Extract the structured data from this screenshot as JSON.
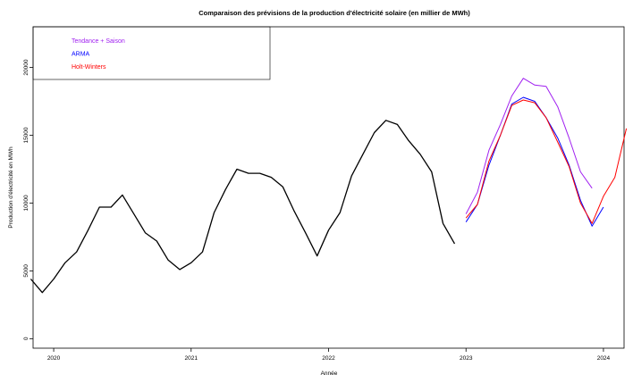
{
  "chart_data": {
    "type": "line",
    "title": "Comparaison des prévisions de la production d'électricité solaire (en millier de MWh)",
    "xlabel": "Année",
    "ylabel": "Production d'électricité en MWh",
    "xlim": [
      2019.85,
      2024.15
    ],
    "ylim": [
      -700,
      23000
    ],
    "x_ticks": [
      2020,
      2021,
      2022,
      2023,
      2024
    ],
    "x_tick_labels": [
      "2020",
      "2021",
      "2022",
      "2023",
      "2024"
    ],
    "y_ticks": [
      0,
      5000,
      10000,
      15000,
      20000
    ],
    "y_tick_labels": [
      "0",
      "5000",
      "10000",
      "15000",
      "20000"
    ],
    "grid": false,
    "legend_position": "top-left",
    "series": [
      {
        "name": "",
        "color": "#000000",
        "x": [
          2019.833,
          2019.917,
          2020.0,
          2020.083,
          2020.167,
          2020.25,
          2020.333,
          2020.417,
          2020.5,
          2020.583,
          2020.667,
          2020.75,
          2020.833,
          2020.917,
          2021.0,
          2021.083,
          2021.167,
          2021.25,
          2021.333,
          2021.417,
          2021.5,
          2021.583,
          2021.667,
          2021.75,
          2021.833,
          2021.917,
          2022.0,
          2022.083,
          2022.167,
          2022.25,
          2022.333,
          2022.417,
          2022.5,
          2022.583,
          2022.667,
          2022.75,
          2022.833,
          2022.917
        ],
        "values": [
          4400,
          3400,
          4400,
          5600,
          6400,
          8000,
          9700,
          9700,
          10600,
          9200,
          7800,
          7200,
          5800,
          5100,
          5600,
          6400,
          9300,
          11000,
          12500,
          12200,
          12200,
          11900,
          11200,
          9400,
          7800,
          6100,
          8000,
          9300,
          12000,
          13600,
          15200,
          16100,
          15800,
          14600,
          13600,
          12300,
          8500,
          7000
        ]
      },
      {
        "name": "Tendance + Saison",
        "color": "#a020f0",
        "x": [
          2023.0,
          2023.083,
          2023.167,
          2023.25,
          2023.333,
          2023.417,
          2023.5,
          2023.583,
          2023.667,
          2023.75,
          2023.833,
          2023.917
        ],
        "values": [
          9200,
          10800,
          13900,
          15800,
          17900,
          19200,
          18700,
          18600,
          17100,
          14800,
          12300,
          11100
        ]
      },
      {
        "name": "ARMA",
        "color": "#0000ff",
        "x": [
          2023.0,
          2023.083,
          2023.167,
          2023.25,
          2023.333,
          2023.417,
          2023.5,
          2023.583,
          2023.667,
          2023.75,
          2023.833,
          2023.917,
          2024.0
        ],
        "values": [
          8600,
          9900,
          12800,
          15000,
          17300,
          17800,
          17500,
          16300,
          14800,
          12800,
          10200,
          8300,
          9700
        ]
      },
      {
        "name": "Holt-Winters",
        "color": "#ff0000",
        "x": [
          2023.0,
          2023.083,
          2023.167,
          2023.25,
          2023.333,
          2023.417,
          2023.5,
          2023.583,
          2023.667,
          2023.75,
          2023.833,
          2023.917,
          2024.0,
          2024.083,
          2024.167
        ],
        "values": [
          8900,
          9900,
          13100,
          15000,
          17200,
          17600,
          17400,
          16300,
          14500,
          12700,
          10000,
          8500,
          10500,
          11900,
          15500
        ]
      }
    ]
  }
}
